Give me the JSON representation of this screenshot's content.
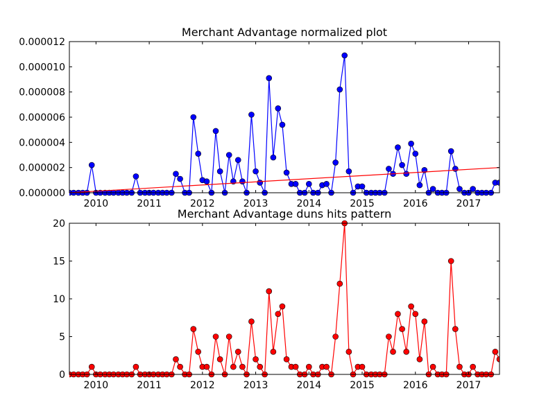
{
  "chart_data": [
    {
      "type": "line",
      "title": "Merchant Advantage normalized plot",
      "xlabel": "",
      "ylabel": "",
      "xlim": [
        2009.5,
        2017.58
      ],
      "ylim": [
        0,
        1.2e-05
      ],
      "x_ticks": [
        "2010",
        "2011",
        "2012",
        "2013",
        "2014",
        "2015",
        "2016",
        "2017"
      ],
      "y_ticks": [
        "0.000000",
        "0.000002",
        "0.000004",
        "0.000006",
        "0.000008",
        "0.000010",
        "0.000012"
      ],
      "grid": false,
      "colors": {
        "series": "#0000ff",
        "trend": "#ff0000"
      },
      "x": [
        2009.5,
        2009.58,
        2009.67,
        2009.75,
        2009.83,
        2009.92,
        2010.0,
        2010.08,
        2010.17,
        2010.25,
        2010.33,
        2010.42,
        2010.5,
        2010.58,
        2010.67,
        2010.75,
        2010.83,
        2010.92,
        2011.0,
        2011.08,
        2011.17,
        2011.25,
        2011.33,
        2011.42,
        2011.5,
        2011.58,
        2011.67,
        2011.75,
        2011.83,
        2011.92,
        2012.0,
        2012.08,
        2012.17,
        2012.25,
        2012.33,
        2012.42,
        2012.5,
        2012.58,
        2012.67,
        2012.75,
        2012.83,
        2012.92,
        2013.0,
        2013.08,
        2013.17,
        2013.25,
        2013.33,
        2013.42,
        2013.5,
        2013.58,
        2013.67,
        2013.75,
        2013.83,
        2013.92,
        2014.0,
        2014.08,
        2014.17,
        2014.25,
        2014.33,
        2014.42,
        2014.5,
        2014.58,
        2014.67,
        2014.75,
        2014.83,
        2014.92,
        2015.0,
        2015.08,
        2015.17,
        2015.25,
        2015.33,
        2015.42,
        2015.5,
        2015.58,
        2015.67,
        2015.75,
        2015.83,
        2015.92,
        2016.0,
        2016.08,
        2016.17,
        2016.25,
        2016.33,
        2016.42,
        2016.5,
        2016.58,
        2016.67,
        2016.75,
        2016.83,
        2016.92,
        2017.0,
        2017.08,
        2017.17,
        2017.25,
        2017.33,
        2017.42,
        2017.5,
        2017.58
      ],
      "series": [
        {
          "values": [
            0,
            0,
            0,
            0,
            0,
            2.2e-06,
            0,
            0,
            0,
            0,
            0,
            0,
            0,
            0,
            0,
            1.3e-06,
            0,
            0,
            0,
            0,
            0,
            0,
            0,
            0,
            1.5e-06,
            1.1e-06,
            0,
            0,
            6e-06,
            3.1e-06,
            1e-06,
            9e-07,
            0,
            4.9e-06,
            1.7e-06,
            0,
            3e-06,
            9e-07,
            2.6e-06,
            9e-07,
            0,
            6.2e-06,
            1.7e-06,
            8e-07,
            0,
            9.1e-06,
            2.8e-06,
            6.7e-06,
            5.4e-06,
            1.6e-06,
            7e-07,
            7e-07,
            0,
            0,
            7e-07,
            0,
            0,
            6e-07,
            7e-07,
            0,
            2.4e-06,
            8.2e-06,
            1.09e-05,
            1.7e-06,
            0,
            5e-07,
            5e-07,
            0,
            0,
            0,
            0,
            0,
            1.9e-06,
            1.5e-06,
            3.6e-06,
            2.2e-06,
            1.5e-06,
            3.9e-06,
            3.1e-06,
            6e-07,
            1.8e-06,
            0,
            3e-07,
            0,
            0,
            0,
            3.3e-06,
            1.9e-06,
            3e-07,
            0,
            0,
            3e-07,
            0,
            0,
            0,
            0,
            8e-07,
            8e-07
          ]
        }
      ],
      "trend_line": {
        "x": [
          2009.5,
          2017.58
        ],
        "values": [
          0,
          2e-06
        ]
      }
    },
    {
      "type": "line",
      "title": "Merchant Advantage duns hits pattern",
      "xlabel": "",
      "ylabel": "",
      "xlim": [
        2009.5,
        2017.58
      ],
      "ylim": [
        0,
        20
      ],
      "x_ticks": [
        "2010",
        "2011",
        "2012",
        "2013",
        "2014",
        "2015",
        "2016",
        "2017"
      ],
      "y_ticks": [
        "0",
        "5",
        "10",
        "15",
        "20"
      ],
      "grid": false,
      "colors": {
        "series": "#ff0000"
      },
      "x": [
        2009.5,
        2009.58,
        2009.67,
        2009.75,
        2009.83,
        2009.92,
        2010.0,
        2010.08,
        2010.17,
        2010.25,
        2010.33,
        2010.42,
        2010.5,
        2010.58,
        2010.67,
        2010.75,
        2010.83,
        2010.92,
        2011.0,
        2011.08,
        2011.17,
        2011.25,
        2011.33,
        2011.42,
        2011.5,
        2011.58,
        2011.67,
        2011.75,
        2011.83,
        2011.92,
        2012.0,
        2012.08,
        2012.17,
        2012.25,
        2012.33,
        2012.42,
        2012.5,
        2012.58,
        2012.67,
        2012.75,
        2012.83,
        2012.92,
        2013.0,
        2013.08,
        2013.17,
        2013.25,
        2013.33,
        2013.42,
        2013.5,
        2013.58,
        2013.67,
        2013.75,
        2013.83,
        2013.92,
        2014.0,
        2014.08,
        2014.17,
        2014.25,
        2014.33,
        2014.42,
        2014.5,
        2014.58,
        2014.67,
        2014.75,
        2014.83,
        2014.92,
        2015.0,
        2015.08,
        2015.17,
        2015.25,
        2015.33,
        2015.42,
        2015.5,
        2015.58,
        2015.67,
        2015.75,
        2015.83,
        2015.92,
        2016.0,
        2016.08,
        2016.17,
        2016.25,
        2016.33,
        2016.42,
        2016.5,
        2016.58,
        2016.67,
        2016.75,
        2016.83,
        2016.92,
        2017.0,
        2017.08,
        2017.17,
        2017.25,
        2017.33,
        2017.42,
        2017.5,
        2017.58
      ],
      "series": [
        {
          "values": [
            0,
            0,
            0,
            0,
            0,
            1,
            0,
            0,
            0,
            0,
            0,
            0,
            0,
            0,
            0,
            1,
            0,
            0,
            0,
            0,
            0,
            0,
            0,
            0,
            2,
            1,
            0,
            0,
            6,
            3,
            1,
            1,
            0,
            5,
            2,
            0,
            5,
            1,
            3,
            1,
            0,
            7,
            2,
            1,
            0,
            11,
            3,
            8,
            9,
            2,
            1,
            1,
            0,
            0,
            1,
            0,
            0,
            1,
            1,
            0,
            5,
            12,
            20,
            3,
            0,
            1,
            1,
            0,
            0,
            0,
            0,
            0,
            5,
            3,
            8,
            6,
            3,
            9,
            8,
            2,
            7,
            0,
            1,
            0,
            0,
            0,
            15,
            6,
            1,
            0,
            0,
            1,
            0,
            0,
            0,
            0,
            3,
            2
          ]
        }
      ]
    }
  ]
}
